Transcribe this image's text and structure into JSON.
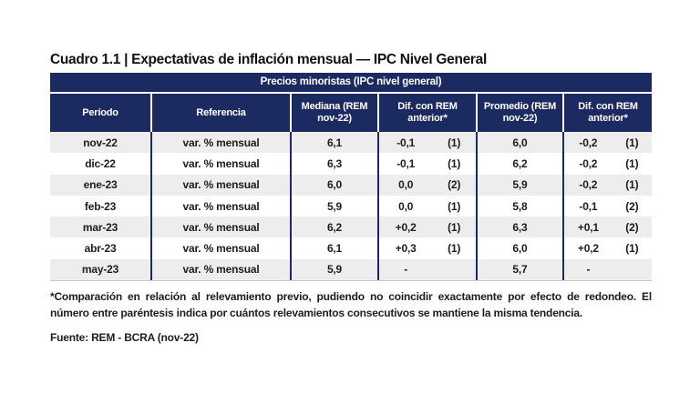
{
  "title": "Cuadro 1.1 | Expectativas de inflación mensual — IPC Nivel General",
  "table": {
    "band_title": "Precios minoristas (IPC nivel general)",
    "columns": {
      "periodo": "Período",
      "referencia": "Referencia",
      "mediana": "Mediana (REM nov-22)",
      "dif1": "Dif. con REM anterior*",
      "promedio": "Promedio (REM nov-22)",
      "dif2": "Dif. con REM anterior*"
    },
    "rows": [
      {
        "periodo": "nov-22",
        "referencia": "var. % mensual",
        "mediana": "6,1",
        "dif1_val": "-0,1",
        "dif1_cnt": "(1)",
        "promedio": "6,0",
        "dif2_val": "-0,2",
        "dif2_cnt": "(1)"
      },
      {
        "periodo": "dic-22",
        "referencia": "var. % mensual",
        "mediana": "6,3",
        "dif1_val": "-0,1",
        "dif1_cnt": "(1)",
        "promedio": "6,2",
        "dif2_val": "-0,2",
        "dif2_cnt": "(1)"
      },
      {
        "periodo": "ene-23",
        "referencia": "var. % mensual",
        "mediana": "6,0",
        "dif1_val": "0,0",
        "dif1_cnt": "(2)",
        "promedio": "5,9",
        "dif2_val": "-0,2",
        "dif2_cnt": "(1)"
      },
      {
        "periodo": "feb-23",
        "referencia": "var. % mensual",
        "mediana": "5,9",
        "dif1_val": "0,0",
        "dif1_cnt": "(1)",
        "promedio": "5,8",
        "dif2_val": "-0,1",
        "dif2_cnt": "(2)"
      },
      {
        "periodo": "mar-23",
        "referencia": "var. % mensual",
        "mediana": "6,2",
        "dif1_val": "+0,2",
        "dif1_cnt": "(1)",
        "promedio": "6,3",
        "dif2_val": "+0,1",
        "dif2_cnt": "(2)"
      },
      {
        "periodo": "abr-23",
        "referencia": "var. % mensual",
        "mediana": "6,1",
        "dif1_val": "+0,3",
        "dif1_cnt": "(1)",
        "promedio": "6,0",
        "dif2_val": "+0,2",
        "dif2_cnt": "(1)"
      },
      {
        "periodo": "may-23",
        "referencia": "var. % mensual",
        "mediana": "5,9",
        "dif1_val": "-",
        "dif1_cnt": "",
        "promedio": "5,7",
        "dif2_val": "-",
        "dif2_cnt": ""
      }
    ]
  },
  "footnote": "*Comparación en relación al relevamiento previo, pudiendo no coincidir exactamente por efecto de redondeo. El número entre paréntesis indica por cuántos relevamientos consecutivos se mantiene la misma tendencia.",
  "source": "Fuente: REM - BCRA (nov-22)",
  "colors": {
    "navy": "#1b2a60",
    "stripe": "#ededee",
    "text": "#1d1d1b"
  }
}
